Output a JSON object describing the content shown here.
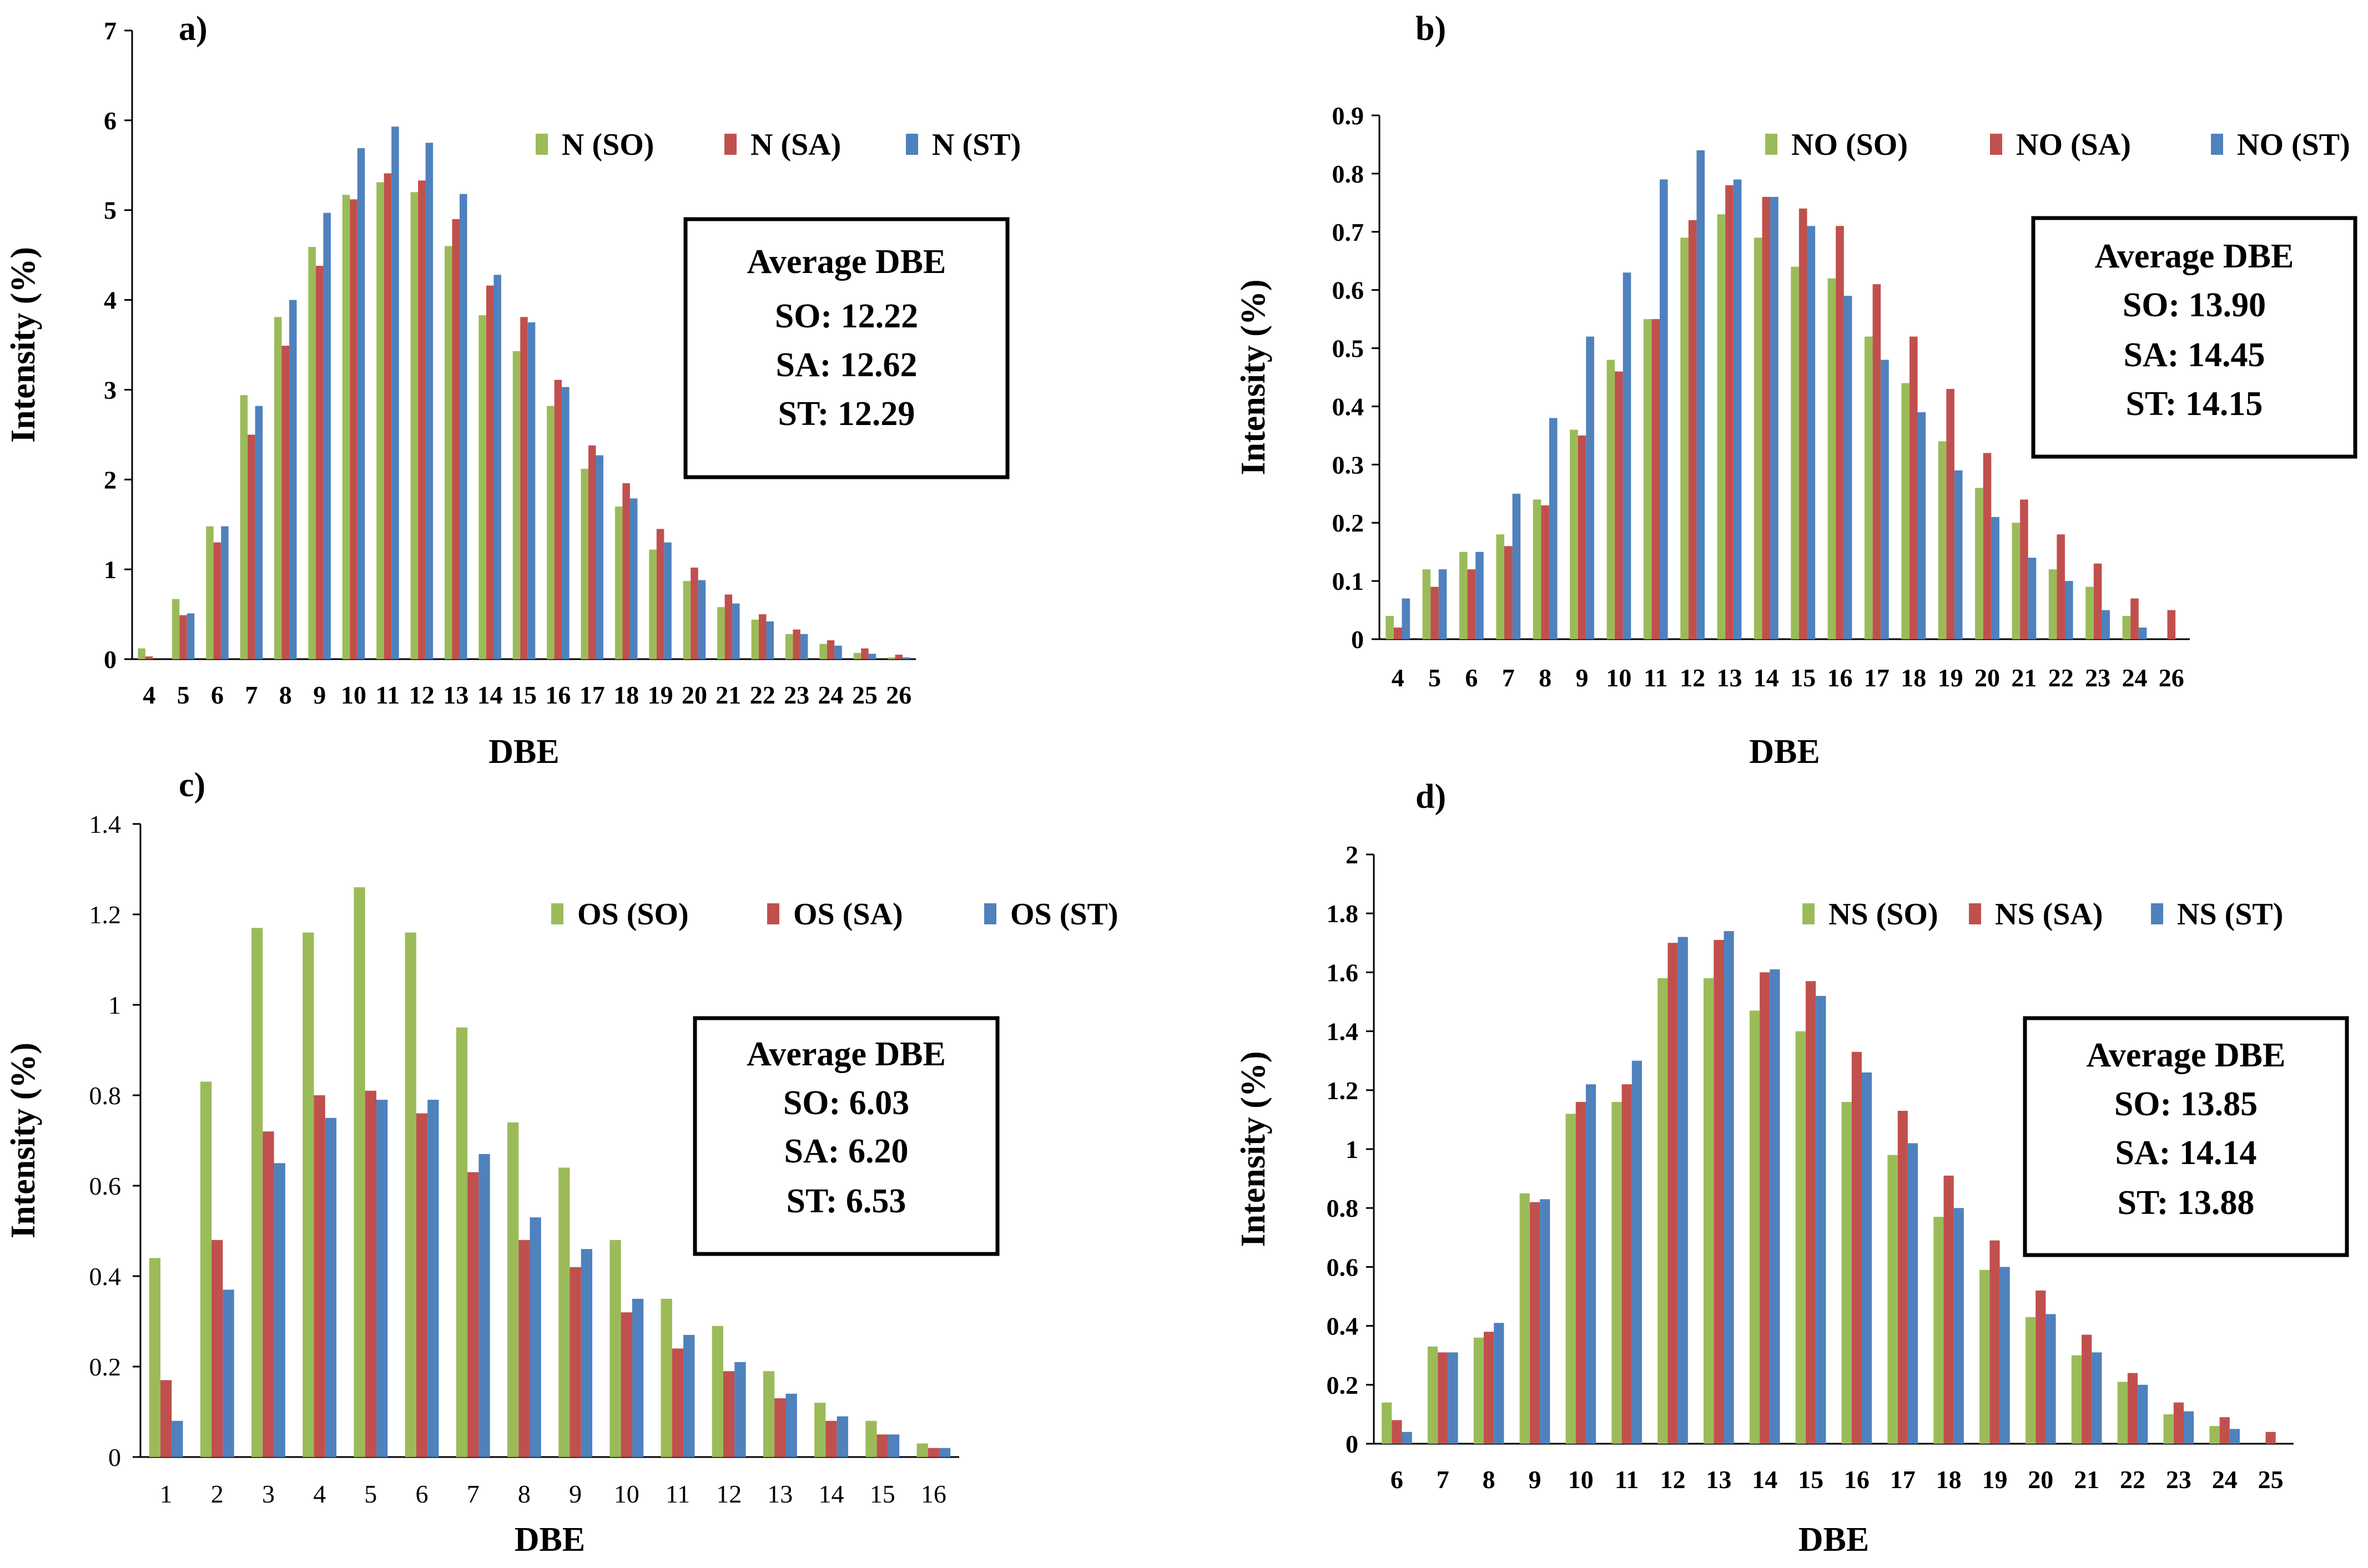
{
  "colors": {
    "SO": "#9BBB59",
    "SA": "#C0504D",
    "ST": "#4F81BD"
  },
  "chart_data": [
    {
      "panel": "a)",
      "type": "bar",
      "xlabel": "DBE",
      "ylabel": "Intensity (%)",
      "ylim": [
        0,
        7
      ],
      "yticks": [
        "0",
        "1",
        "2",
        "3",
        "4",
        "5",
        "6",
        "7"
      ],
      "categories": [
        "4",
        "5",
        "6",
        "7",
        "8",
        "9",
        "10",
        "11",
        "12",
        "13",
        "14",
        "15",
        "16",
        "17",
        "18",
        "19",
        "20",
        "21",
        "22",
        "23",
        "24",
        "25",
        "26"
      ],
      "series": [
        {
          "name": "N (SO)",
          "values": [
            0.12,
            0.67,
            1.48,
            2.94,
            3.81,
            4.59,
            5.17,
            5.31,
            5.2,
            4.6,
            3.83,
            3.43,
            2.82,
            2.12,
            1.7,
            1.22,
            0.87,
            0.58,
            0.44,
            0.28,
            0.17,
            0.07,
            0.02
          ]
        },
        {
          "name": "N (SA)",
          "values": [
            0.03,
            0.49,
            1.3,
            2.5,
            3.49,
            4.38,
            5.12,
            5.41,
            5.33,
            4.9,
            4.16,
            3.81,
            3.11,
            2.38,
            1.96,
            1.45,
            1.02,
            0.72,
            0.5,
            0.33,
            0.21,
            0.12,
            0.05
          ]
        },
        {
          "name": "N (ST)",
          "values": [
            0.0,
            0.51,
            1.48,
            2.82,
            4.0,
            4.97,
            5.69,
            5.93,
            5.75,
            5.18,
            4.28,
            3.75,
            3.03,
            2.27,
            1.79,
            1.3,
            0.88,
            0.62,
            0.42,
            0.28,
            0.15,
            0.06,
            0.02
          ]
        }
      ],
      "box": {
        "title": "Average DBE",
        "lines": [
          "SO: 12.22",
          "SA: 12.62",
          "ST: 12.29"
        ]
      }
    },
    {
      "panel": "b)",
      "type": "bar",
      "xlabel": "DBE",
      "ylabel": "Intensity (%)",
      "ylim": [
        0,
        0.9
      ],
      "yticks": [
        "0",
        "0.1",
        "0.2",
        "0.3",
        "0.4",
        "0.5",
        "0.6",
        "0.7",
        "0.8",
        "0.9"
      ],
      "categories": [
        "4",
        "5",
        "6",
        "7",
        "8",
        "9",
        "10",
        "11",
        "12",
        "13",
        "14",
        "15",
        "16",
        "17",
        "18",
        "19",
        "20",
        "21",
        "22",
        "23",
        "24",
        "26"
      ],
      "series": [
        {
          "name": "NO (SO)",
          "values": [
            0.04,
            0.12,
            0.15,
            0.18,
            0.24,
            0.36,
            0.48,
            0.55,
            0.69,
            0.73,
            0.69,
            0.64,
            0.62,
            0.52,
            0.44,
            0.34,
            0.26,
            0.2,
            0.12,
            0.09,
            0.04,
            0.0
          ]
        },
        {
          "name": "NO (SA)",
          "values": [
            0.02,
            0.09,
            0.12,
            0.16,
            0.23,
            0.35,
            0.46,
            0.55,
            0.72,
            0.78,
            0.76,
            0.74,
            0.71,
            0.61,
            0.52,
            0.43,
            0.32,
            0.24,
            0.18,
            0.13,
            0.07,
            0.05
          ]
        },
        {
          "name": "NO (ST)",
          "values": [
            0.07,
            0.12,
            0.15,
            0.25,
            0.38,
            0.52,
            0.63,
            0.79,
            0.84,
            0.79,
            0.76,
            0.71,
            0.59,
            0.48,
            0.39,
            0.29,
            0.21,
            0.14,
            0.1,
            0.05,
            0.02,
            0.0
          ]
        }
      ],
      "box": {
        "title": "Average DBE",
        "lines": [
          "SO: 13.90",
          "SA: 14.45",
          "ST: 14.15"
        ]
      }
    },
    {
      "panel": "c)",
      "type": "bar",
      "xlabel": "DBE",
      "ylabel": "Intensity (%)",
      "ylim": [
        0,
        1.4
      ],
      "yticks": [
        "0",
        "0.2",
        "0.4",
        "0.6",
        "0.8",
        "1",
        "1.2",
        "1.4"
      ],
      "categories": [
        "1",
        "2",
        "3",
        "4",
        "5",
        "6",
        "7",
        "8",
        "9",
        "10",
        "11",
        "12",
        "13",
        "14",
        "15",
        "16"
      ],
      "series": [
        {
          "name": "OS (SO)",
          "values": [
            0.44,
            0.83,
            1.17,
            1.16,
            1.26,
            1.16,
            0.95,
            0.74,
            0.64,
            0.48,
            0.35,
            0.29,
            0.19,
            0.12,
            0.08,
            0.03
          ]
        },
        {
          "name": "OS (SA)",
          "values": [
            0.17,
            0.48,
            0.72,
            0.8,
            0.81,
            0.76,
            0.63,
            0.48,
            0.42,
            0.32,
            0.24,
            0.19,
            0.13,
            0.08,
            0.05,
            0.02
          ]
        },
        {
          "name": "OS (ST)",
          "values": [
            0.08,
            0.37,
            0.65,
            0.75,
            0.79,
            0.79,
            0.67,
            0.53,
            0.46,
            0.35,
            0.27,
            0.21,
            0.14,
            0.09,
            0.05,
            0.02
          ]
        }
      ],
      "box": {
        "title": "Average DBE",
        "lines": [
          "SO: 6.03",
          "SA: 6.20",
          "ST: 6.53"
        ]
      }
    },
    {
      "panel": "d)",
      "type": "bar",
      "xlabel": "DBE",
      "ylabel": "Intensity (%)",
      "ylim": [
        0,
        2
      ],
      "yticks": [
        "0",
        "0.2",
        "0.4",
        "0.6",
        "0.8",
        "1",
        "1.2",
        "1.4",
        "1.6",
        "1.8",
        "2"
      ],
      "categories": [
        "6",
        "7",
        "8",
        "9",
        "10",
        "11",
        "12",
        "13",
        "14",
        "15",
        "16",
        "17",
        "18",
        "19",
        "20",
        "21",
        "22",
        "23",
        "24",
        "25"
      ],
      "series": [
        {
          "name": "NS (SO)",
          "values": [
            0.14,
            0.33,
            0.36,
            0.85,
            1.12,
            1.16,
            1.58,
            1.58,
            1.47,
            1.4,
            1.16,
            0.98,
            0.77,
            0.59,
            0.43,
            0.3,
            0.21,
            0.1,
            0.06,
            0.0
          ]
        },
        {
          "name": "NS (SA)",
          "values": [
            0.08,
            0.31,
            0.38,
            0.82,
            1.16,
            1.22,
            1.7,
            1.71,
            1.6,
            1.57,
            1.33,
            1.13,
            0.91,
            0.69,
            0.52,
            0.37,
            0.24,
            0.14,
            0.09,
            0.04
          ]
        },
        {
          "name": "NS (ST)",
          "values": [
            0.04,
            0.31,
            0.41,
            0.83,
            1.22,
            1.3,
            1.72,
            1.74,
            1.61,
            1.52,
            1.26,
            1.02,
            0.8,
            0.6,
            0.44,
            0.31,
            0.2,
            0.11,
            0.05,
            0.0
          ]
        }
      ],
      "box": {
        "title": "Average DBE",
        "lines": [
          "SO: 13.85",
          "SA: 14.14",
          "ST: 13.88"
        ]
      }
    }
  ]
}
